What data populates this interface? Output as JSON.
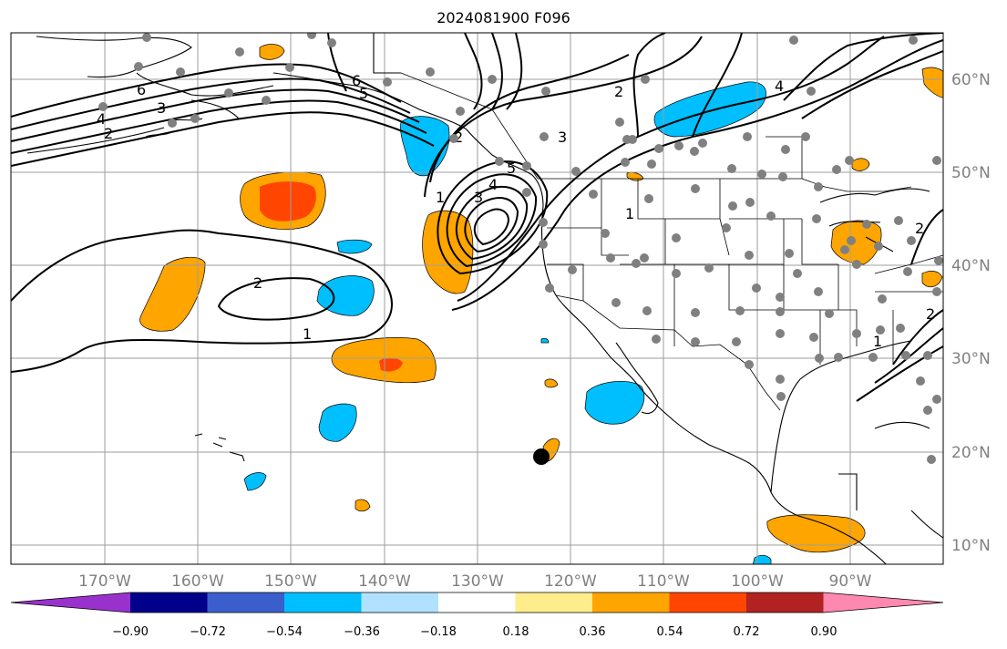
{
  "title": "2024081900 F096",
  "map": {
    "lon_range": [
      -180,
      -80
    ],
    "lat_range": [
      8,
      65
    ],
    "lon_ticks": [
      "170°W",
      "160°W",
      "150°W",
      "140°W",
      "130°W",
      "120°W",
      "110°W",
      "100°W",
      "90°W"
    ],
    "lat_ticks": [
      "60°N",
      "50°N",
      "40°N",
      "30°N",
      "20°N",
      "10°N"
    ],
    "contour_labels": [
      "6",
      "3",
      "4",
      "2",
      "6",
      "5",
      "3",
      "2",
      "4",
      "1",
      "5",
      "4",
      "3",
      "2",
      "1",
      "2",
      "1",
      "1",
      "2",
      "2"
    ]
  },
  "colorbar": {
    "ticks": [
      "−0.90",
      "−0.72",
      "−0.54",
      "−0.36",
      "−0.18",
      "0.18",
      "0.36",
      "0.54",
      "0.72",
      "0.90"
    ],
    "colors": [
      "#9932cc",
      "#00008b",
      "#3a5fcd",
      "#00bfff",
      "#b0e2ff",
      "#ffffff",
      "#ffec8b",
      "#ffa500",
      "#ff4500",
      "#b22222",
      "#ff88b0"
    ]
  },
  "colors": {
    "positive_fill": "#ffa500",
    "strong_positive_fill": "#ff4500",
    "negative_fill": "#00bfff",
    "station_dot": "#808080",
    "storm_marker": "#000000"
  }
}
